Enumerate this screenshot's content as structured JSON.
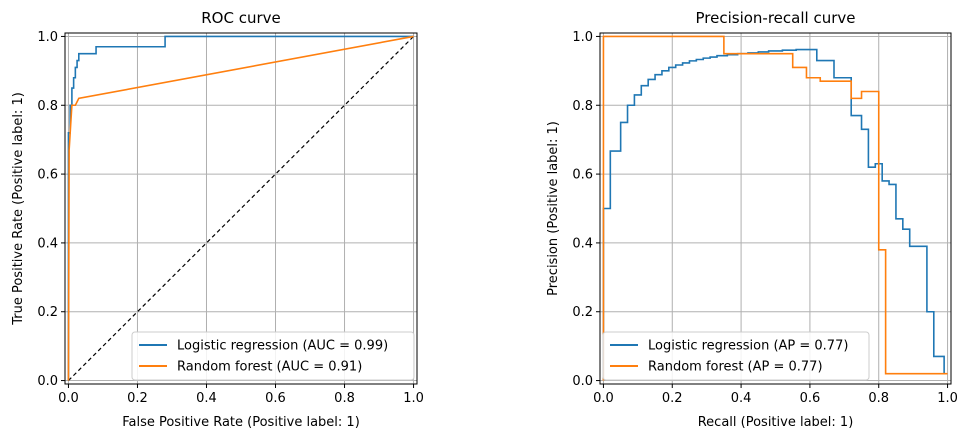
{
  "chart_data": [
    {
      "type": "line",
      "title": "ROC curve",
      "xlabel": "False Positive Rate (Positive label: 1)",
      "ylabel": "True Positive Rate (Positive label: 1)",
      "xlim": [
        -0.01,
        1.01
      ],
      "ylim": [
        -0.01,
        1.01
      ],
      "xticks": [
        "0.0",
        "0.2",
        "0.4",
        "0.6",
        "0.8",
        "1.0"
      ],
      "yticks": [
        "0.0",
        "0.2",
        "0.4",
        "0.6",
        "0.8",
        "1.0"
      ],
      "grid": true,
      "legend_position": "bottom-right",
      "chance_line": {
        "x": [
          0,
          1
        ],
        "y": [
          0,
          1
        ],
        "color": "#000000",
        "style": "dashed"
      },
      "series": [
        {
          "name": "Logistic regression (AUC = 0.99)",
          "color": "#1f77b4",
          "step": true,
          "x": [
            0,
            0,
            0.005,
            0.005,
            0.01,
            0.01,
            0.015,
            0.015,
            0.02,
            0.02,
            0.025,
            0.025,
            0.03,
            0.03,
            0.08,
            0.08,
            0.28,
            0.28,
            1.0
          ],
          "y": [
            0,
            0.72,
            0.72,
            0.8,
            0.8,
            0.85,
            0.85,
            0.88,
            0.88,
            0.91,
            0.91,
            0.93,
            0.93,
            0.95,
            0.95,
            0.97,
            0.97,
            1.0,
            1.0
          ]
        },
        {
          "name": "Random forest (AUC = 0.91)",
          "color": "#ff7f0e",
          "step": false,
          "x": [
            0,
            0.002,
            0.005,
            0.01,
            0.02,
            0.03,
            1.0
          ],
          "y": [
            0,
            0.67,
            0.72,
            0.8,
            0.8,
            0.82,
            1.0
          ]
        }
      ]
    },
    {
      "type": "line",
      "title": "Precision-recall curve",
      "xlabel": "Recall (Positive label: 1)",
      "ylabel": "Precision (Positive label: 1)",
      "xlim": [
        -0.01,
        1.01
      ],
      "ylim": [
        -0.01,
        1.01
      ],
      "xticks": [
        "0.0",
        "0.2",
        "0.4",
        "0.6",
        "0.8",
        "1.0"
      ],
      "yticks": [
        "0.0",
        "0.2",
        "0.4",
        "0.6",
        "0.8",
        "1.0"
      ],
      "grid": true,
      "legend_position": "bottom-left",
      "series": [
        {
          "name": "Logistic regression (AP = 0.77)",
          "color": "#1f77b4",
          "step": true,
          "x": [
            0.0,
            0.0,
            0.02,
            0.02,
            0.05,
            0.05,
            0.07,
            0.07,
            0.09,
            0.09,
            0.11,
            0.11,
            0.13,
            0.13,
            0.15,
            0.15,
            0.17,
            0.17,
            0.19,
            0.19,
            0.21,
            0.21,
            0.23,
            0.23,
            0.25,
            0.25,
            0.27,
            0.27,
            0.29,
            0.29,
            0.31,
            0.31,
            0.33,
            0.33,
            0.36,
            0.36,
            0.39,
            0.39,
            0.42,
            0.42,
            0.45,
            0.45,
            0.48,
            0.48,
            0.52,
            0.52,
            0.56,
            0.56,
            0.62,
            0.62,
            0.67,
            0.67,
            0.72,
            0.72,
            0.75,
            0.75,
            0.77,
            0.77,
            0.79,
            0.79,
            0.81,
            0.81,
            0.83,
            0.83,
            0.85,
            0.85,
            0.87,
            0.87,
            0.89,
            0.89,
            0.91,
            0.91,
            0.94,
            0.94,
            0.96,
            0.96,
            0.99,
            0.99
          ],
          "y": [
            0.0,
            0.5,
            0.5,
            0.667,
            0.667,
            0.75,
            0.75,
            0.8,
            0.8,
            0.83,
            0.83,
            0.857,
            0.857,
            0.875,
            0.875,
            0.889,
            0.889,
            0.9,
            0.9,
            0.91,
            0.91,
            0.917,
            0.917,
            0.923,
            0.923,
            0.929,
            0.929,
            0.933,
            0.933,
            0.937,
            0.937,
            0.94,
            0.94,
            0.944,
            0.944,
            0.947,
            0.947,
            0.95,
            0.95,
            0.952,
            0.952,
            0.955,
            0.955,
            0.958,
            0.958,
            0.96,
            0.96,
            0.962,
            0.962,
            0.93,
            0.93,
            0.88,
            0.88,
            0.77,
            0.77,
            0.73,
            0.73,
            0.62,
            0.62,
            0.63,
            0.63,
            0.58,
            0.58,
            0.57,
            0.57,
            0.47,
            0.47,
            0.44,
            0.44,
            0.39,
            0.39,
            0.39,
            0.39,
            0.2,
            0.2,
            0.07,
            0.07,
            0.02
          ]
        },
        {
          "name": "Random forest (AP = 0.77)",
          "color": "#ff7f0e",
          "step": true,
          "x": [
            0.0,
            0.0,
            0.35,
            0.35,
            0.55,
            0.55,
            0.59,
            0.59,
            0.63,
            0.63,
            0.72,
            0.72,
            0.75,
            0.75,
            0.8,
            0.8,
            0.82,
            0.82,
            1.0
          ],
          "y": [
            0.0,
            1.0,
            1.0,
            0.95,
            0.95,
            0.91,
            0.91,
            0.88,
            0.88,
            0.87,
            0.87,
            0.82,
            0.82,
            0.84,
            0.84,
            0.38,
            0.38,
            0.02,
            0.02
          ]
        }
      ]
    }
  ]
}
